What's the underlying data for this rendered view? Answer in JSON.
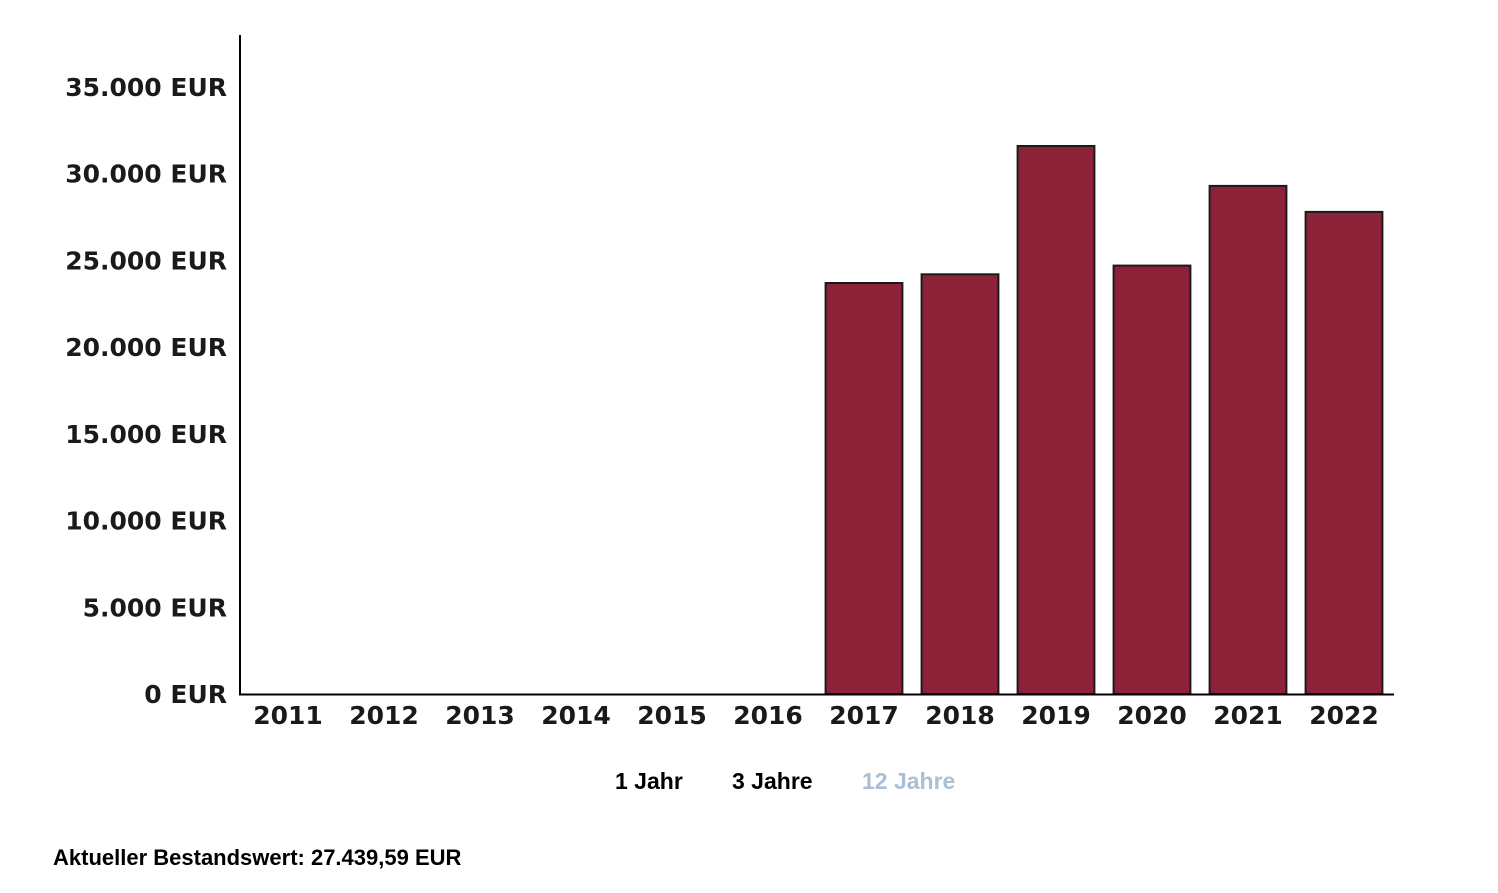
{
  "chart_data": {
    "type": "bar",
    "categories": [
      "2011",
      "2012",
      "2013",
      "2014",
      "2015",
      "2016",
      "2017",
      "2018",
      "2019",
      "2020",
      "2021",
      "2022"
    ],
    "values": [
      0,
      0,
      0,
      0,
      0,
      0,
      23700,
      24200,
      31600,
      24700,
      29300,
      27800
    ],
    "yticks": [
      0,
      5000,
      10000,
      15000,
      20000,
      25000,
      30000,
      35000
    ],
    "ytick_labels": [
      "0 EUR",
      "5.000 EUR",
      "10.000 EUR",
      "15.000 EUR",
      "20.000 EUR",
      "25.000 EUR",
      "30.000 EUR",
      "35.000 EUR"
    ],
    "ylim": [
      0,
      38000
    ],
    "bar_color": "#8b2237",
    "grid": false
  },
  "range_tabs": [
    {
      "label": "1 Jahr",
      "active": false
    },
    {
      "label": "3 Jahre",
      "active": false
    },
    {
      "label": "12 Jahre",
      "active": true
    }
  ],
  "summary": {
    "text": "Aktueller Bestandswert: 27.439,59 EUR"
  }
}
